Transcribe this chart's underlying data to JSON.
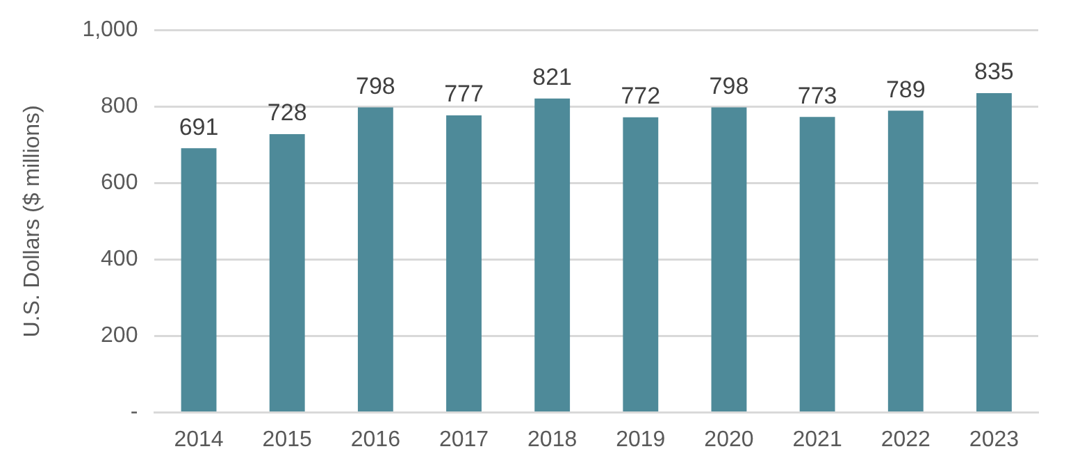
{
  "chart_data": {
    "type": "bar",
    "ylabel": "U.S. Dollars ($ millions)",
    "categories": [
      "2014",
      "2015",
      "2016",
      "2017",
      "2018",
      "2019",
      "2020",
      "2021",
      "2022",
      "2023"
    ],
    "values": [
      691,
      728,
      798,
      777,
      821,
      772,
      798,
      773,
      789,
      835
    ],
    "color": "#4e8a99",
    "ylim": [
      0,
      1000
    ],
    "yticks": [
      {
        "value": 0,
        "label": "-"
      },
      200,
      400,
      600,
      800,
      {
        "value": 1000,
        "label": "1,000"
      }
    ],
    "grid": "y",
    "legend": false,
    "data_labels": true
  }
}
